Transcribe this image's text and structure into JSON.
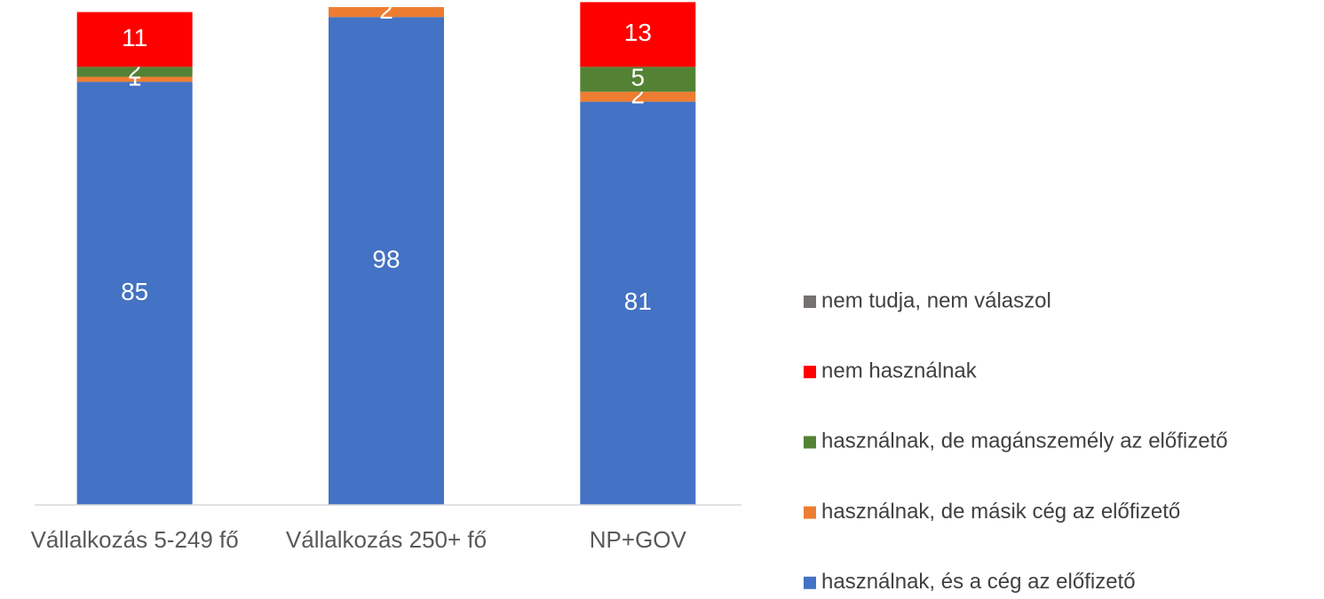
{
  "chart_data": {
    "type": "stacked_bar",
    "categories": [
      "Vállalkozás 5-249 fő",
      "Vállalkozás 250+ fő",
      "NP+GOV"
    ],
    "ylim": [
      0,
      100
    ],
    "series": [
      {
        "name": "használnak, és a cég az előfizető",
        "color": "#4472c4",
        "values": [
          85,
          98,
          81
        ]
      },
      {
        "name": "használnak, de másik cég az előfizető",
        "color": "#ed7d31",
        "values": [
          1,
          2,
          2
        ]
      },
      {
        "name": "használnak, de magánszemély az előfizető",
        "color": "#548235",
        "values": [
          2,
          0,
          5
        ]
      },
      {
        "name": "nem használnak",
        "color": "#ff0000",
        "values": [
          11,
          0,
          13
        ]
      },
      {
        "name": "nem tudja, nem válaszol",
        "color": "#767171",
        "values": [
          0,
          0,
          0
        ]
      }
    ]
  }
}
